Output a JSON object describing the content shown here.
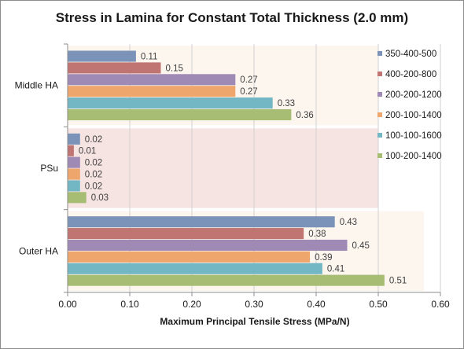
{
  "chart_data": {
    "type": "bar",
    "orientation": "horizontal",
    "title": "Stress in Lamina for Constant Total Thickness (2.0 mm)",
    "xlabel": "Maximum Principal  Tensile Stress (MPa/N)",
    "ylabel": "",
    "xlim": [
      0,
      0.6
    ],
    "xticks": [
      "0.00",
      "0.10",
      "0.20",
      "0.30",
      "0.40",
      "0.50",
      "0.60"
    ],
    "grid": true,
    "legend_position": "right",
    "categories": [
      "Middle HA",
      "PSu",
      "Outer HA"
    ],
    "category_backgrounds": [
      "#fdf6ef",
      "#f6e4e2",
      "#fdf6ef"
    ],
    "series": [
      {
        "name": "350-400-500",
        "color": "#7b93b8",
        "values": [
          0.11,
          0.02,
          0.43
        ],
        "labels": [
          "0.11",
          "0.02",
          "0.43"
        ]
      },
      {
        "name": "400-200-800",
        "color": "#c17573",
        "values": [
          0.15,
          0.01,
          0.38
        ],
        "labels": [
          "0.15",
          "0.01",
          "0.38"
        ]
      },
      {
        "name": "200-200-1200",
        "color": "#9f89b5",
        "values": [
          0.27,
          0.02,
          0.45
        ],
        "labels": [
          "0.27",
          "0.02",
          "0.45"
        ]
      },
      {
        "name": "200-100-1400",
        "color": "#efa66c",
        "values": [
          0.27,
          0.02,
          0.39
        ],
        "labels": [
          "0.27",
          "0.02",
          "0.39"
        ]
      },
      {
        "name": "100-100-1600",
        "color": "#72b7c3",
        "values": [
          0.33,
          0.02,
          0.41
        ],
        "labels": [
          "0.33",
          "0.02",
          "0.41"
        ]
      },
      {
        "name": "100-200-1400",
        "color": "#a8bd74",
        "values": [
          0.36,
          0.03,
          0.51
        ],
        "labels": [
          "0.36",
          "0.03",
          "0.51"
        ]
      }
    ]
  }
}
